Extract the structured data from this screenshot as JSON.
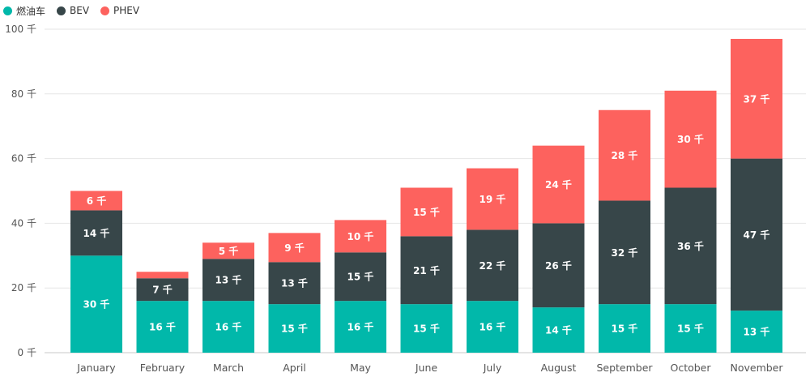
{
  "legend": {
    "items": [
      {
        "label": "燃油车",
        "color": "#01B8AA"
      },
      {
        "label": "BEV",
        "color": "#374649"
      },
      {
        "label": "PHEV",
        "color": "#FD625E"
      }
    ]
  },
  "chart_data": {
    "type": "bar",
    "stacked": true,
    "categories": [
      "January",
      "February",
      "March",
      "April",
      "May",
      "June",
      "July",
      "August",
      "September",
      "October",
      "November"
    ],
    "series": [
      {
        "name": "燃油车",
        "color": "#01B8AA",
        "values": [
          30,
          16,
          16,
          15,
          16,
          15,
          16,
          14,
          15,
          15,
          13
        ],
        "labels": [
          "30 千",
          "16 千",
          "16 千",
          "15 千",
          "16 千",
          "15 千",
          "16 千",
          "14 千",
          "15 千",
          "15 千",
          "13 千"
        ]
      },
      {
        "name": "BEV",
        "color": "#374649",
        "values": [
          14,
          7,
          13,
          13,
          15,
          21,
          22,
          26,
          32,
          36,
          47
        ],
        "labels": [
          "14 千",
          "7 千",
          "13 千",
          "13 千",
          "15 千",
          "21 千",
          "22 千",
          "26 千",
          "32 千",
          "36 千",
          "47 千"
        ]
      },
      {
        "name": "PHEV",
        "color": "#FD625E",
        "values": [
          6,
          2,
          5,
          9,
          10,
          15,
          19,
          24,
          28,
          30,
          37
        ],
        "labels": [
          "6 千",
          "",
          "5 千",
          "9 千",
          "10 千",
          "15 千",
          "19 千",
          "24 千",
          "28 千",
          "30 千",
          "37 千"
        ]
      }
    ],
    "ylim": [
      0,
      100
    ],
    "yticks": [
      0,
      20,
      40,
      60,
      80,
      100
    ],
    "ytick_labels": [
      "0 千",
      "20 千",
      "40 千",
      "60 千",
      "80 千",
      "100 千"
    ],
    "grid": true,
    "legend_position": "top-left"
  }
}
